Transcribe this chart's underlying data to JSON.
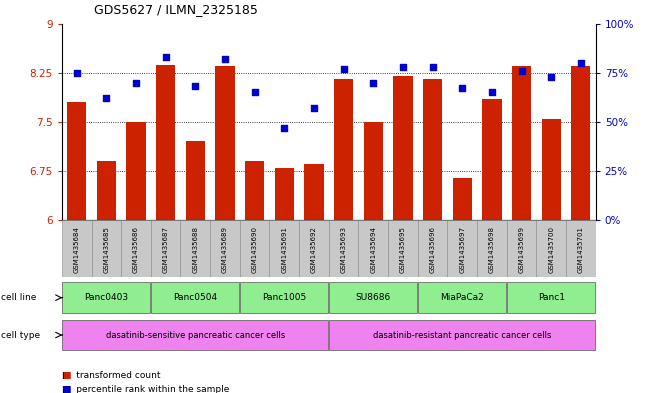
{
  "title": "GDS5627 / ILMN_2325185",
  "samples": [
    "GSM1435684",
    "GSM1435685",
    "GSM1435686",
    "GSM1435687",
    "GSM1435688",
    "GSM1435689",
    "GSM1435690",
    "GSM1435691",
    "GSM1435692",
    "GSM1435693",
    "GSM1435694",
    "GSM1435695",
    "GSM1435696",
    "GSM1435697",
    "GSM1435698",
    "GSM1435699",
    "GSM1435700",
    "GSM1435701"
  ],
  "bar_values": [
    7.8,
    6.9,
    7.5,
    8.37,
    7.2,
    8.35,
    6.9,
    6.8,
    6.85,
    8.15,
    7.5,
    8.2,
    8.15,
    6.65,
    7.85,
    8.35,
    7.55,
    8.35
  ],
  "dot_values": [
    75,
    62,
    70,
    83,
    68,
    82,
    65,
    47,
    57,
    77,
    70,
    78,
    78,
    67,
    65,
    76,
    73,
    80
  ],
  "ylim_left": [
    6,
    9
  ],
  "ylim_right": [
    0,
    100
  ],
  "yticks_left": [
    6,
    6.75,
    7.5,
    8.25,
    9
  ],
  "yticks_right": [
    0,
    25,
    50,
    75,
    100
  ],
  "ytick_labels_left": [
    "6",
    "6.75",
    "7.5",
    "8.25",
    "9"
  ],
  "ytick_labels_right": [
    "0%",
    "25%",
    "50%",
    "75%",
    "100%"
  ],
  "bar_color": "#cc2200",
  "dot_color": "#0000cc",
  "cell_lines": [
    {
      "label": "Panc0403",
      "start": 0,
      "end": 2
    },
    {
      "label": "Panc0504",
      "start": 3,
      "end": 5
    },
    {
      "label": "Panc1005",
      "start": 6,
      "end": 8
    },
    {
      "label": "SU8686",
      "start": 9,
      "end": 11
    },
    {
      "label": "MiaPaCa2",
      "start": 12,
      "end": 14
    },
    {
      "label": "Panc1",
      "start": 15,
      "end": 17
    }
  ],
  "cell_types": [
    {
      "label": "dasatinib-sensitive pancreatic cancer cells",
      "start": 0,
      "end": 8
    },
    {
      "label": "dasatinib-resistant pancreatic cancer cells",
      "start": 9,
      "end": 17
    }
  ],
  "cell_line_color": "#90ee90",
  "cell_type_color": "#ee82ee",
  "tick_label_bg": "#c8c8c8",
  "legend_items": [
    {
      "label": "transformed count",
      "color": "#cc2200"
    },
    {
      "label": "percentile rank within the sample",
      "color": "#0000cc"
    }
  ]
}
